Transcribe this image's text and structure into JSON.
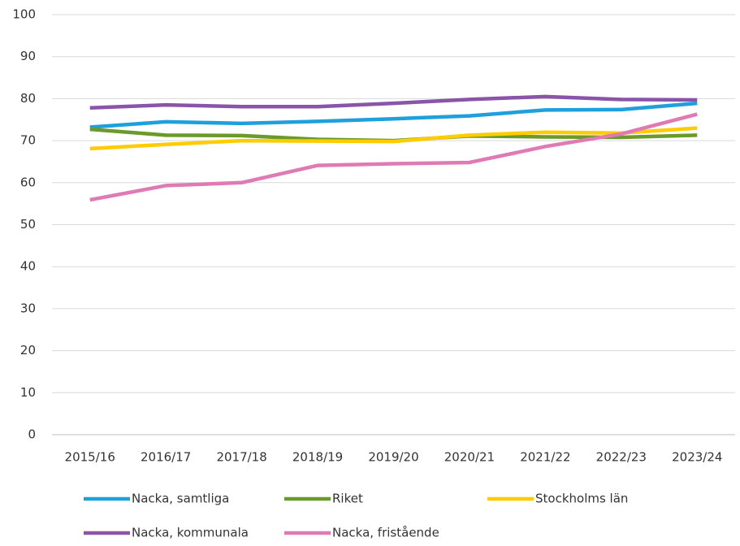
{
  "chart_data": {
    "type": "line",
    "categories": [
      "2015/16",
      "2016/17",
      "2017/18",
      "2018/19",
      "2019/20",
      "2020/21",
      "2021/22",
      "2022/23",
      "2023/24"
    ],
    "series": [
      {
        "name": "Nacka, samtliga",
        "color": "#1ea0dc",
        "values": [
          73.2,
          74.5,
          74.1,
          74.6,
          75.2,
          75.9,
          77.3,
          77.4,
          78.9
        ]
      },
      {
        "name": "Riket",
        "color": "#6a9a2a",
        "values": [
          72.7,
          71.3,
          71.2,
          70.3,
          70.0,
          71.1,
          70.9,
          70.8,
          71.3
        ]
      },
      {
        "name": "Stockholms län",
        "color": "#ffcc00",
        "values": [
          68.1,
          69.1,
          70.0,
          69.9,
          69.8,
          71.3,
          72.0,
          71.8,
          73.0
        ]
      },
      {
        "name": "Nacka, kommunala",
        "color": "#8a55a8",
        "values": [
          77.8,
          78.5,
          78.1,
          78.1,
          78.9,
          79.8,
          80.5,
          79.8,
          79.7
        ]
      },
      {
        "name": "Nacka, fristående",
        "color": "#e07ab4",
        "values": [
          55.9,
          59.3,
          60.0,
          64.1,
          64.5,
          64.8,
          68.6,
          71.6,
          76.3
        ]
      }
    ],
    "ylim": [
      0,
      100
    ],
    "yticks": [
      0,
      10,
      20,
      30,
      40,
      50,
      60,
      70,
      80,
      90,
      100
    ],
    "grid": true,
    "legend": "bottom"
  }
}
